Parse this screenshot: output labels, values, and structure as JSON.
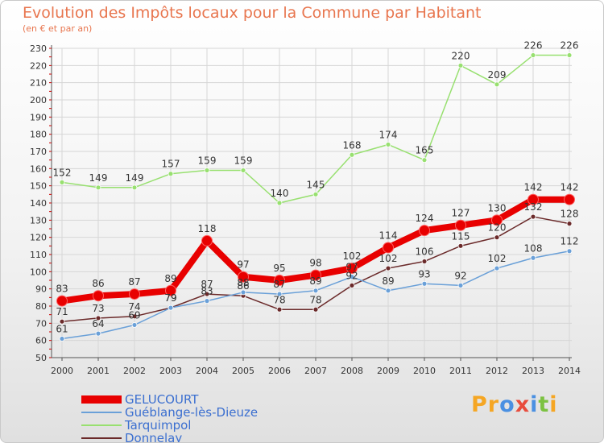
{
  "title": "Evolution des Impôts locaux pour la Commune par Habitant",
  "subtitle": "(en € et par an)",
  "logo": {
    "text": "Proxiti",
    "letters": [
      "P",
      "r",
      "o",
      "x",
      "i",
      "t",
      "i"
    ],
    "colors": [
      "#f5a623",
      "#f5a623",
      "#4a90e2",
      "#e84c3d",
      "#4a90e2",
      "#7cc242",
      "#f5a623"
    ]
  },
  "chart_data": {
    "type": "line",
    "x": [
      "2000",
      "2001",
      "2002",
      "2003",
      "2004",
      "2005",
      "2006",
      "2007",
      "2008",
      "2009",
      "2010",
      "2011",
      "2012",
      "2013",
      "2014"
    ],
    "ylim": [
      50,
      230
    ],
    "yticks": [
      50,
      60,
      70,
      80,
      90,
      100,
      110,
      120,
      130,
      140,
      150,
      160,
      170,
      180,
      190,
      200,
      210,
      220,
      230
    ],
    "grid": true,
    "legend_position": "bottom-left",
    "series": [
      {
        "name": "GELUCOURT",
        "color": "#e80000",
        "values": [
          83,
          86,
          87,
          89,
          118,
          97,
          95,
          98,
          102,
          114,
          124,
          127,
          130,
          142,
          142
        ]
      },
      {
        "name": "Guéblange-lès-Dieuze",
        "color": "#6aa0d8",
        "values": [
          61,
          64,
          69,
          79,
          83,
          88,
          87,
          89,
          97,
          89,
          93,
          92,
          102,
          108,
          112
        ]
      },
      {
        "name": "Tarquimpol",
        "color": "#98e070",
        "values": [
          152,
          149,
          149,
          157,
          159,
          159,
          140,
          145,
          168,
          174,
          165,
          220,
          209,
          226,
          226
        ]
      },
      {
        "name": "Donnelay",
        "color": "#6b2a2a",
        "values": [
          71,
          73,
          74,
          79,
          87,
          86,
          78,
          78,
          92,
          102,
          106,
          115,
          120,
          132,
          128
        ]
      }
    ]
  }
}
